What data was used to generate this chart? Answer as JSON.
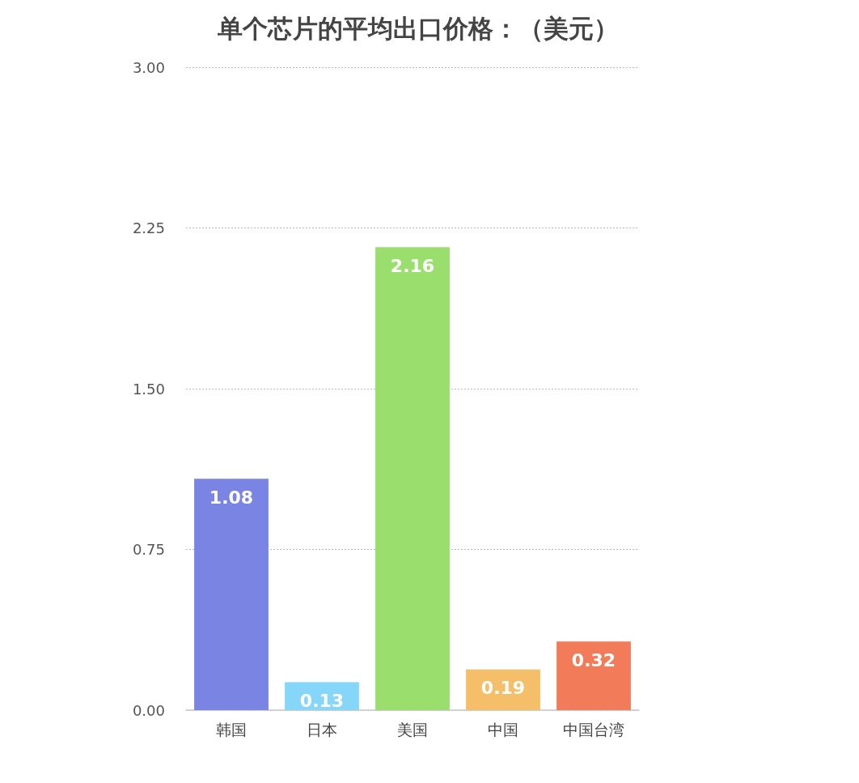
{
  "chart_data": {
    "type": "bar",
    "title": "单个芯片的平均出口价格：（美元）",
    "categories": [
      "韩国",
      "日本",
      "美国",
      "中国",
      "中国台湾"
    ],
    "values": [
      1.08,
      0.13,
      2.16,
      0.19,
      0.32
    ],
    "colors": [
      "#7a84e2",
      "#86d6fa",
      "#9ade6e",
      "#f5bf69",
      "#f27c5a"
    ],
    "ylim": [
      0,
      3
    ],
    "yticks": [
      {
        "value": 0,
        "label": "0.00"
      },
      0.75,
      {
        "value": 1.5,
        "label": "1.50"
      },
      2.25,
      {
        "value": 3,
        "label": "3.00"
      }
    ],
    "grid": "y",
    "data_labels": true
  }
}
